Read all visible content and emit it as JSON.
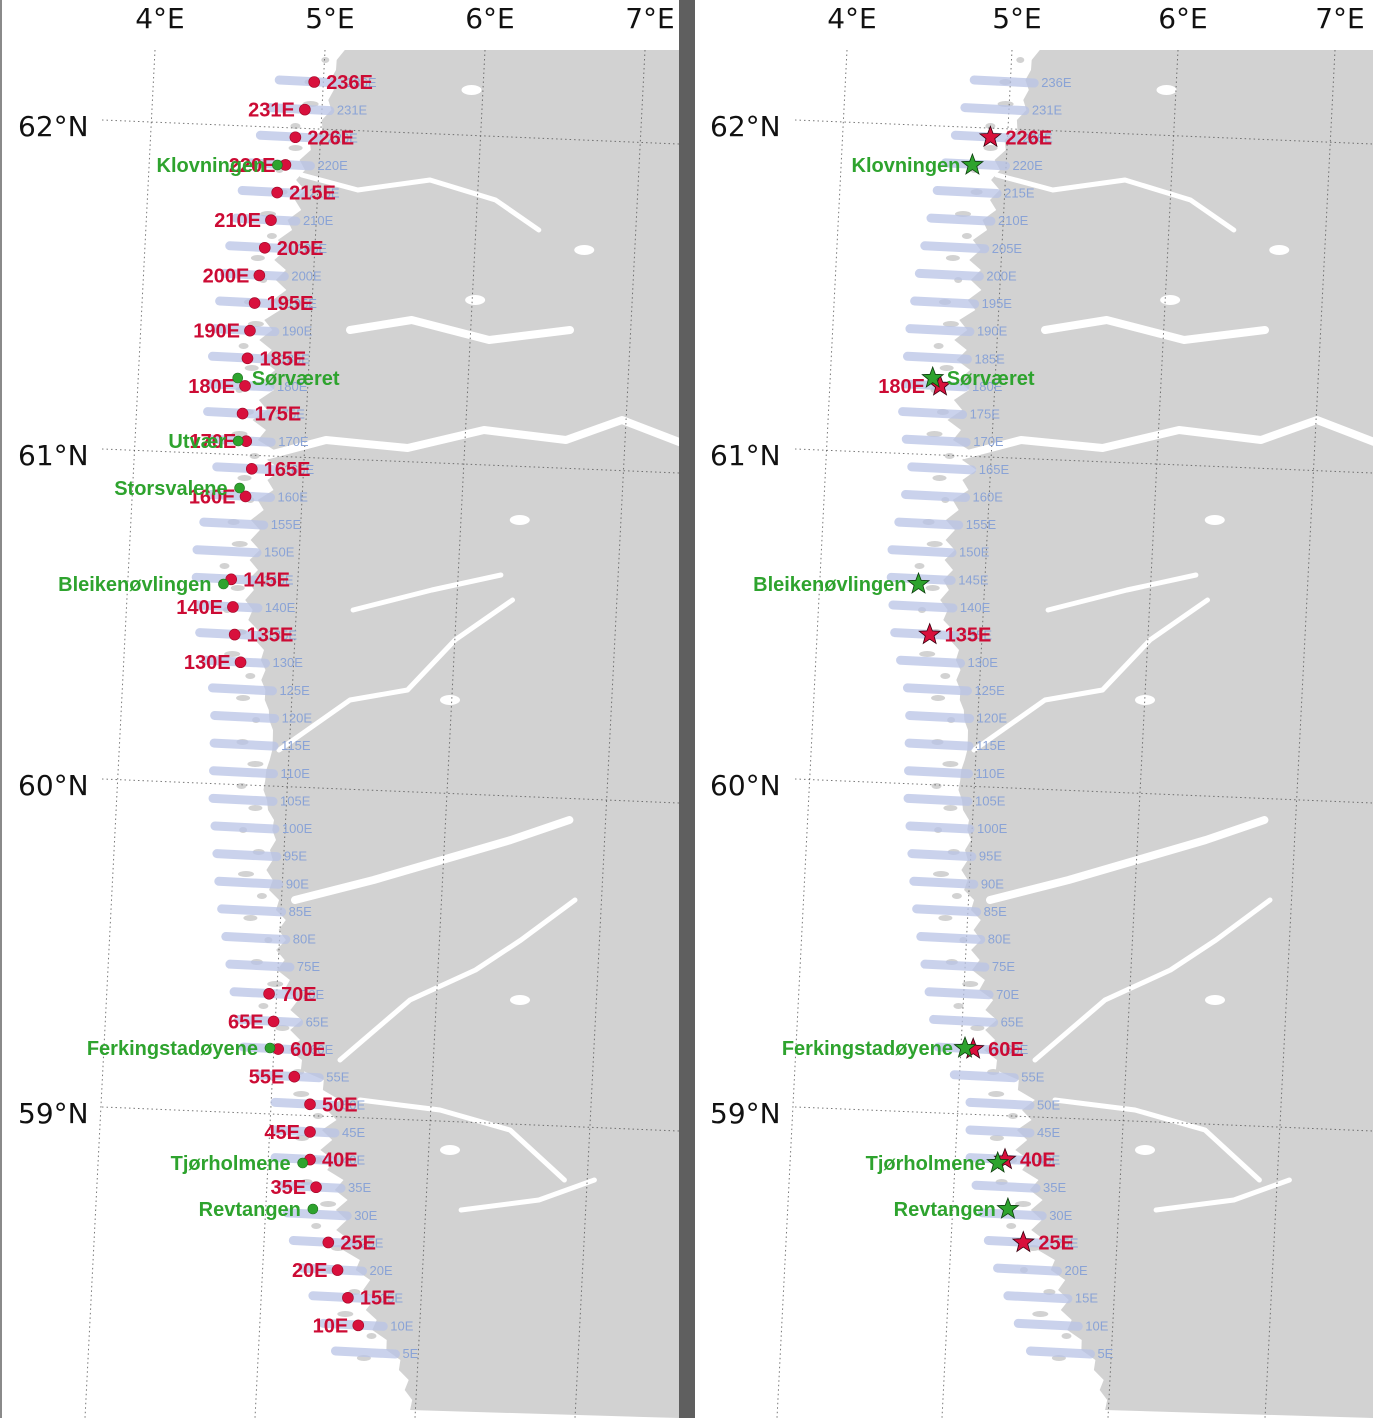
{
  "colors": {
    "land": "#d2d2d2",
    "sea": "#ffffff",
    "separator": "#5f5f5f",
    "transect": "#b9c4e6",
    "transect_label": "#8aa3d6",
    "red_marker": "#d8103c",
    "green_marker": "#2ea32e"
  },
  "longitude_labels": [
    "4°E",
    "5°E",
    "6°E",
    "7°E"
  ],
  "latitude_labels": [
    "62°N",
    "61°N",
    "60°N",
    "59°N"
  ],
  "transect_labels": [
    "236E",
    "231E",
    "226E",
    "220E",
    "215E",
    "210E",
    "205E",
    "200E",
    "195E",
    "190E",
    "185E",
    "180E",
    "175E",
    "170E",
    "165E",
    "160E",
    "155E",
    "150E",
    "145E",
    "140E",
    "135E",
    "130E",
    "125E",
    "120E",
    "115E",
    "110E",
    "105E",
    "100E",
    "95E",
    "90E",
    "85E",
    "80E",
    "75E",
    "70E",
    "65E",
    "60E",
    "55E",
    "50E",
    "45E",
    "40E",
    "35E",
    "30E",
    "25E",
    "20E",
    "15E",
    "10E",
    "5E"
  ],
  "left_panel": {
    "marker": "dot",
    "red_stations": [
      "236E",
      "231E",
      "226E",
      "220E",
      "215E",
      "210E",
      "205E",
      "200E",
      "195E",
      "190E",
      "185E",
      "180E",
      "175E",
      "170E",
      "165E",
      "160E",
      "145E",
      "140E",
      "135E",
      "130E",
      "70E",
      "65E",
      "60E",
      "55E",
      "50E",
      "45E",
      "40E",
      "35E",
      "25E",
      "20E",
      "15E",
      "10E"
    ],
    "green_stations": [
      "Klovningen",
      "Sørværet",
      "Utvær",
      "Storsvalene",
      "Bleikenøvlingen",
      "Ferkingstadøyene",
      "Tjørholmene",
      "Revtangen"
    ]
  },
  "right_panel": {
    "marker": "star",
    "red_stations": [
      "226E",
      "180E",
      "135E",
      "60E",
      "40E",
      "25E"
    ],
    "green_stations": [
      "Klovningen",
      "Sørværet",
      "Bleikenøvlingen",
      "Ferkingstadøyene",
      "Tjørholmene",
      "Revtangen"
    ]
  }
}
